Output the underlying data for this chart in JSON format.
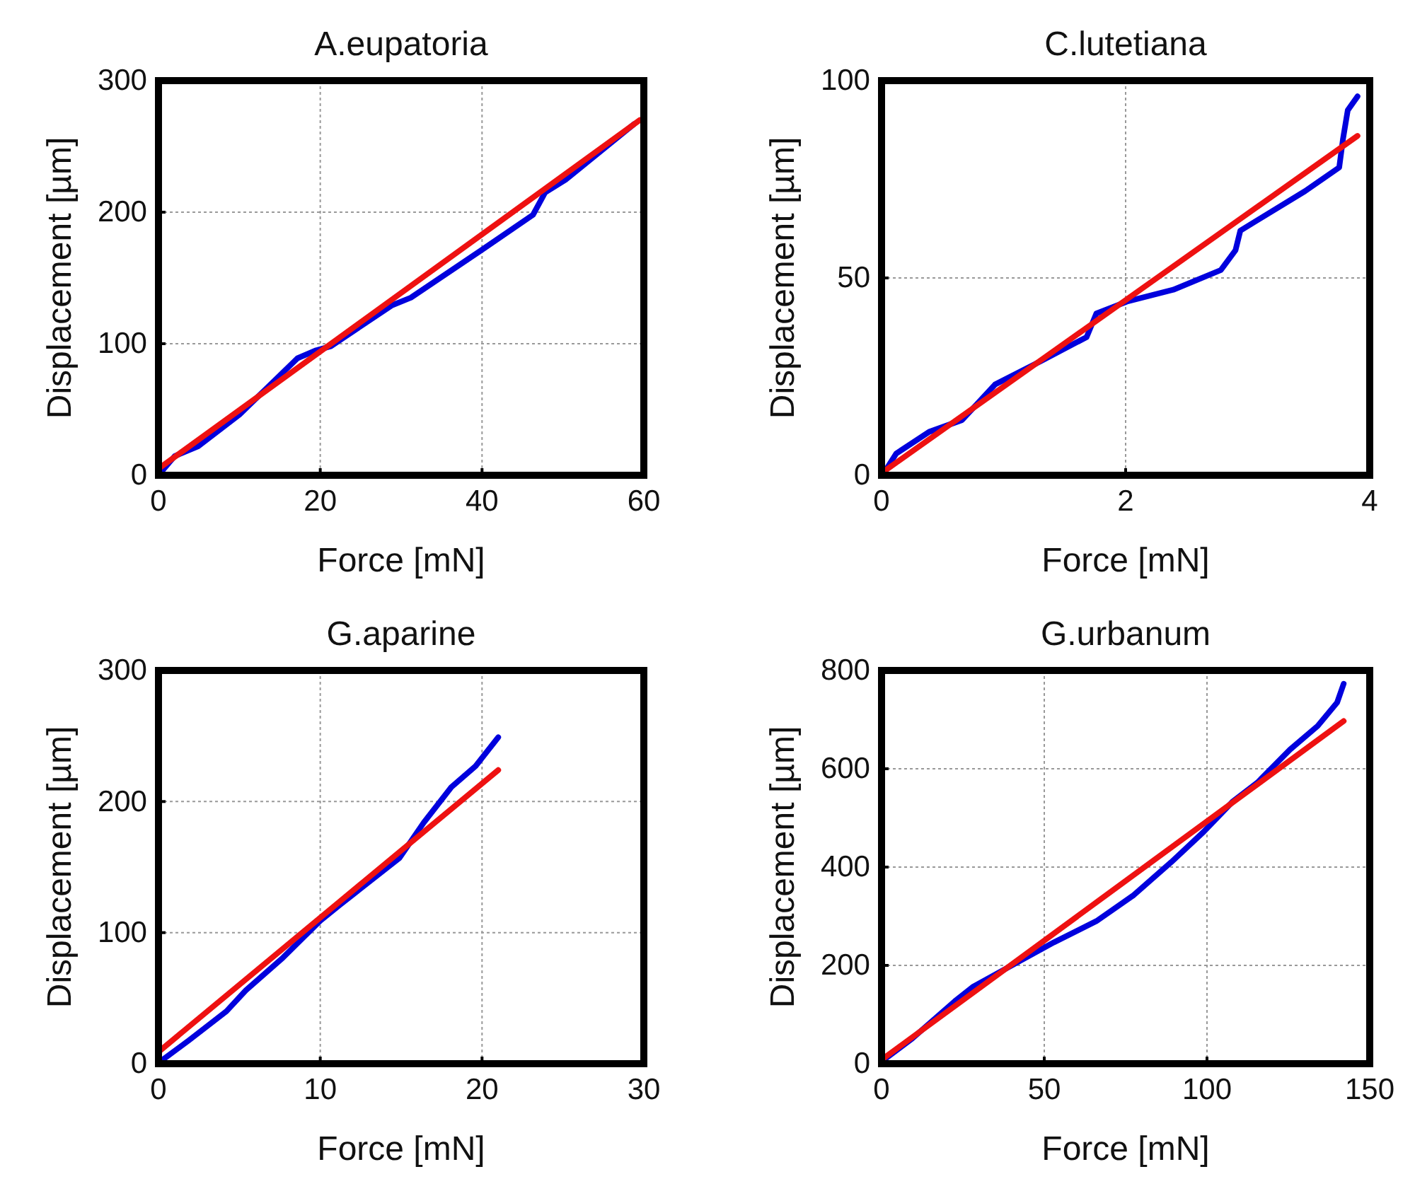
{
  "chart_data": [
    {
      "type": "line",
      "title": "A.eupatoria",
      "xlabel": "Force [mN]",
      "ylabel": "Displacement [µm]",
      "xlim": [
        0,
        60
      ],
      "ylim": [
        0,
        300
      ],
      "xticks": [
        0,
        20,
        40,
        60
      ],
      "yticks": [
        0,
        100,
        200,
        300
      ],
      "grid": true,
      "line_style": "solid",
      "series": [
        {
          "color": "#0000dd",
          "x": [
            0,
            2,
            4.9,
            10,
            17.2,
            19.5,
            21.3,
            28.8,
            31.2,
            39.9,
            46.3,
            47.8,
            50.4,
            58.8
          ],
          "values": [
            0,
            14.5,
            22,
            46,
            89,
            95,
            98,
            129,
            135,
            171,
            198,
            215,
            225,
            267
          ]
        },
        {
          "color": "#ee1111",
          "x": [
            0,
            59.5
          ],
          "values": [
            5,
            270
          ]
        }
      ]
    },
    {
      "type": "line",
      "title": "C.lutetiana",
      "xlabel": "Force [mN]",
      "ylabel": "Displacement [µm]",
      "xlim": [
        0,
        4
      ],
      "ylim": [
        0,
        100
      ],
      "xticks": [
        0,
        2,
        4
      ],
      "yticks": [
        0,
        50,
        100
      ],
      "grid": true,
      "line_style": "solid",
      "series": [
        {
          "color": "#0000dd",
          "x": [
            0.02,
            0.12,
            0.39,
            0.66,
            0.93,
            1.31,
            1.68,
            1.76,
            2.01,
            2.39,
            2.78,
            2.9,
            2.94,
            3.47,
            3.75,
            3.78,
            3.82,
            3.9
          ],
          "values": [
            0.6,
            5.5,
            11,
            14,
            23,
            29,
            35,
            41,
            44,
            47,
            52,
            57,
            62,
            72,
            78,
            85,
            92.5,
            96
          ]
        },
        {
          "color": "#ee1111",
          "x": [
            0.02,
            3.9
          ],
          "values": [
            1,
            86
          ]
        }
      ]
    },
    {
      "type": "line",
      "title": "G.aparine",
      "xlabel": "Force [mN]",
      "ylabel": "Displacement [µm]",
      "xlim": [
        0,
        30
      ],
      "ylim": [
        0,
        300
      ],
      "xticks": [
        0,
        10,
        20,
        30
      ],
      "yticks": [
        0,
        100,
        200,
        300
      ],
      "grid": true,
      "line_style": "solid",
      "series": [
        {
          "color": "#0000dd",
          "x": [
            0.15,
            1.9,
            4.2,
            5.4,
            7.7,
            10,
            11.2,
            14.9,
            16.4,
            18.1,
            19.6,
            21
          ],
          "values": [
            2,
            18,
            40,
            56,
            81,
            109,
            121,
            157,
            184,
            211,
            227,
            249
          ]
        },
        {
          "color": "#ee1111",
          "x": [
            0,
            21
          ],
          "values": [
            9,
            224
          ]
        }
      ]
    },
    {
      "type": "line",
      "title": "G.urbanum",
      "xlabel": "Force [mN]",
      "ylabel": "Displacement [µm]",
      "xlim": [
        0,
        150
      ],
      "ylim": [
        0,
        800
      ],
      "xticks": [
        0,
        50,
        100,
        150
      ],
      "yticks": [
        0,
        200,
        400,
        600,
        800
      ],
      "grid": true,
      "line_style": "solid",
      "series": [
        {
          "color": "#0000dd",
          "x": [
            0.7,
            9.4,
            22.5,
            28,
            42.8,
            53,
            66,
            77.5,
            89,
            99,
            108,
            115.5,
            125.5,
            134,
            140,
            142
          ],
          "values": [
            8,
            51,
            127,
            156,
            210,
            247,
            290,
            343,
            410,
            472,
            534,
            572,
            639,
            687,
            735,
            773
          ]
        },
        {
          "color": "#ee1111",
          "x": [
            0,
            142
          ],
          "values": [
            8,
            697
          ]
        }
      ]
    }
  ]
}
